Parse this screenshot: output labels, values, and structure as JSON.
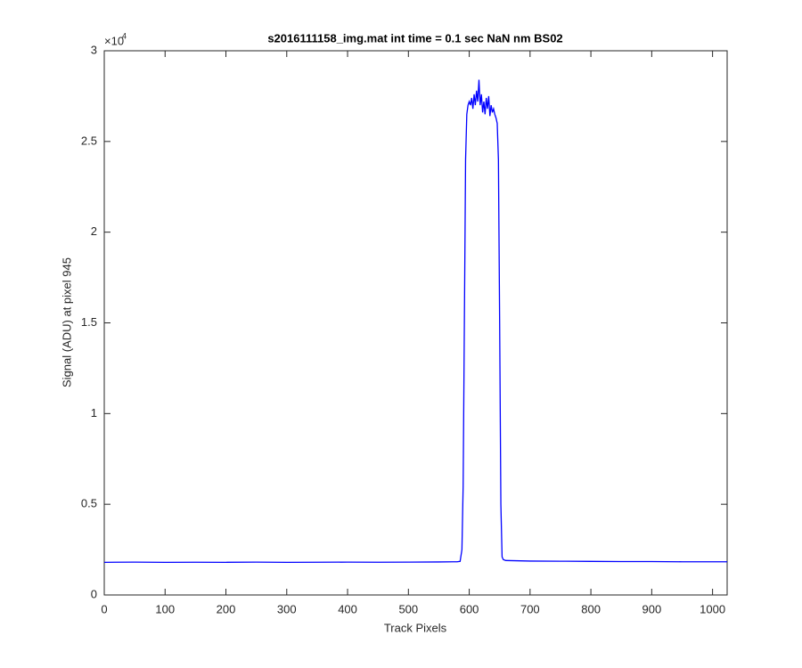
{
  "chart_data": {
    "type": "line",
    "title": "s2016111158_img.mat int time = 0.1 sec  NaN nm BS02",
    "x_label": "Track Pixels",
    "y_label": "Signal (ADU) at pixel 945",
    "y_multiplier": {
      "base": "×10",
      "exponent": "4"
    },
    "xlim": [
      0,
      1024
    ],
    "xticks": [
      0,
      100,
      200,
      300,
      400,
      500,
      600,
      700,
      800,
      900,
      1000
    ],
    "ylim": [
      0,
      30000
    ],
    "yticks": [
      {
        "value": 0,
        "label": "0"
      },
      {
        "value": 5000,
        "label": "0.5"
      },
      {
        "value": 10000,
        "label": "1"
      },
      {
        "value": 15000,
        "label": "1.5"
      },
      {
        "value": 20000,
        "label": "2"
      },
      {
        "value": 25000,
        "label": "2.5"
      },
      {
        "value": 30000,
        "label": "3"
      }
    ],
    "grid": false,
    "series": [
      {
        "color": "#0000ff",
        "x": [
          0,
          50,
          100,
          150,
          200,
          250,
          300,
          350,
          400,
          450,
          500,
          550,
          580,
          585,
          588,
          590,
          592,
          594,
          596,
          598,
          600,
          602,
          604,
          606,
          608,
          610,
          612,
          614,
          616,
          618,
          620,
          622,
          624,
          626,
          628,
          630,
          632,
          634,
          636,
          638,
          640,
          642,
          644,
          646,
          648,
          650,
          652,
          654,
          656,
          660,
          700,
          750,
          800,
          850,
          900,
          950,
          1000,
          1024
        ],
        "values": [
          1800,
          1810,
          1800,
          1805,
          1800,
          1810,
          1800,
          1805,
          1810,
          1805,
          1810,
          1820,
          1830,
          1850,
          2500,
          6000,
          15000,
          24000,
          26500,
          27000,
          27200,
          27000,
          27400,
          26800,
          27600,
          27000,
          27800,
          27200,
          28400,
          27000,
          27600,
          26600,
          27200,
          26500,
          27400,
          26800,
          27500,
          26400,
          27000,
          26600,
          26800,
          26500,
          26300,
          26000,
          24000,
          15000,
          5000,
          2100,
          1950,
          1900,
          1870,
          1860,
          1850,
          1840,
          1840,
          1830,
          1830,
          1830
        ]
      }
    ]
  }
}
